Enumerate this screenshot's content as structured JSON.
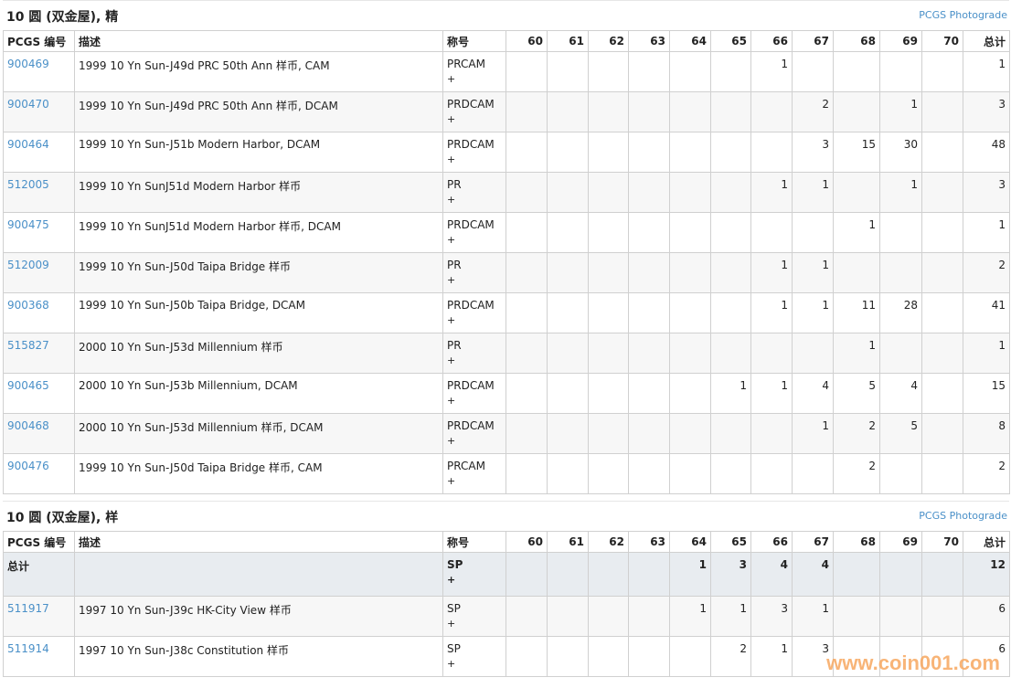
{
  "columns": {
    "pcgs": "PCGS 编号",
    "desc": "描述",
    "desig": "称号",
    "grades": [
      "60",
      "61",
      "62",
      "63",
      "64",
      "65",
      "66",
      "67",
      "68",
      "69",
      "70"
    ],
    "total": "总计"
  },
  "sections": [
    {
      "title": "10 圆 (双金屋), 精",
      "photograde": "PCGS Photograde",
      "rows": [
        {
          "id": "900469",
          "desc": "1999 10 Yn Sun-J49d PRC 50th Ann 样币, CAM",
          "desig": "PRCAM",
          "plus": "+",
          "grades": [
            "",
            "",
            "",
            "",
            "",
            "",
            "1",
            "",
            "",
            "",
            ""
          ],
          "total": "1"
        },
        {
          "id": "900470",
          "desc": "1999 10 Yn Sun-J49d PRC 50th Ann 样币, DCAM",
          "desig": "PRDCAM",
          "plus": "+",
          "grades": [
            "",
            "",
            "",
            "",
            "",
            "",
            "",
            "2",
            "",
            "1",
            ""
          ],
          "total": "3"
        },
        {
          "id": "900464",
          "desc": "1999 10 Yn Sun-J51b Modern Harbor, DCAM",
          "desig": "PRDCAM",
          "plus": "+",
          "grades": [
            "",
            "",
            "",
            "",
            "",
            "",
            "",
            "3",
            "15",
            "30",
            ""
          ],
          "total": "48"
        },
        {
          "id": "512005",
          "desc": "1999 10 Yn SunJ51d Modern Harbor 样币",
          "desig": "PR",
          "plus": "+",
          "grades": [
            "",
            "",
            "",
            "",
            "",
            "",
            "1",
            "1",
            "",
            "1",
            ""
          ],
          "total": "3"
        },
        {
          "id": "900475",
          "desc": "1999 10 Yn SunJ51d Modern Harbor 样币, DCAM",
          "desig": "PRDCAM",
          "plus": "+",
          "grades": [
            "",
            "",
            "",
            "",
            "",
            "",
            "",
            "",
            "1",
            "",
            ""
          ],
          "total": "1"
        },
        {
          "id": "512009",
          "desc": "1999 10 Yn Sun-J50d Taipa Bridge 样币",
          "desig": "PR",
          "plus": "+",
          "grades": [
            "",
            "",
            "",
            "",
            "",
            "",
            "1",
            "1",
            "",
            "",
            ""
          ],
          "total": "2"
        },
        {
          "id": "900368",
          "desc": "1999 10 Yn Sun-J50b Taipa Bridge, DCAM",
          "desig": "PRDCAM",
          "plus": "+",
          "grades": [
            "",
            "",
            "",
            "",
            "",
            "",
            "1",
            "1",
            "11",
            "28",
            ""
          ],
          "total": "41"
        },
        {
          "id": "515827",
          "desc": "2000 10 Yn Sun-J53d Millennium 样币",
          "desig": "PR",
          "plus": "+",
          "grades": [
            "",
            "",
            "",
            "",
            "",
            "",
            "",
            "",
            "1",
            "",
            ""
          ],
          "total": "1"
        },
        {
          "id": "900465",
          "desc": "2000 10 Yn Sun-J53b Millennium, DCAM",
          "desig": "PRDCAM",
          "plus": "+",
          "grades": [
            "",
            "",
            "",
            "",
            "",
            "1",
            "1",
            "4",
            "5",
            "4",
            ""
          ],
          "total": "15"
        },
        {
          "id": "900468",
          "desc": "2000 10 Yn Sun-J53d Millennium 样币, DCAM",
          "desig": "PRDCAM",
          "plus": "+",
          "grades": [
            "",
            "",
            "",
            "",
            "",
            "",
            "",
            "1",
            "2",
            "5",
            ""
          ],
          "total": "8"
        },
        {
          "id": "900476",
          "desc": "1999 10 Yn Sun-J50d Taipa Bridge 样币, CAM",
          "desig": "PRCAM",
          "plus": "+",
          "grades": [
            "",
            "",
            "",
            "",
            "",
            "",
            "",
            "",
            "2",
            "",
            ""
          ],
          "total": "2"
        }
      ]
    },
    {
      "title": "10 圆 (双金屋), 样",
      "photograde": "PCGS Photograde",
      "total_row": {
        "label": "总计",
        "desig": "SP",
        "plus": "+",
        "grades": [
          "",
          "",
          "",
          "",
          "1",
          "3",
          "4",
          "4",
          "",
          "",
          ""
        ],
        "total": "12"
      },
      "rows": [
        {
          "id": "511917",
          "desc": "1997 10 Yn Sun-J39c HK-City View 样币",
          "desig": "SP",
          "plus": "+",
          "grades": [
            "",
            "",
            "",
            "",
            "1",
            "1",
            "3",
            "1",
            "",
            "",
            ""
          ],
          "total": "6"
        },
        {
          "id": "511914",
          "desc": "1997 10 Yn Sun-J38c Constitution 样币",
          "desig": "SP",
          "plus": "+",
          "grades": [
            "",
            "",
            "",
            "",
            "",
            "2",
            "1",
            "3",
            "",
            "",
            ""
          ],
          "total": "6"
        }
      ]
    }
  ],
  "watermark": "www.coin001.com"
}
